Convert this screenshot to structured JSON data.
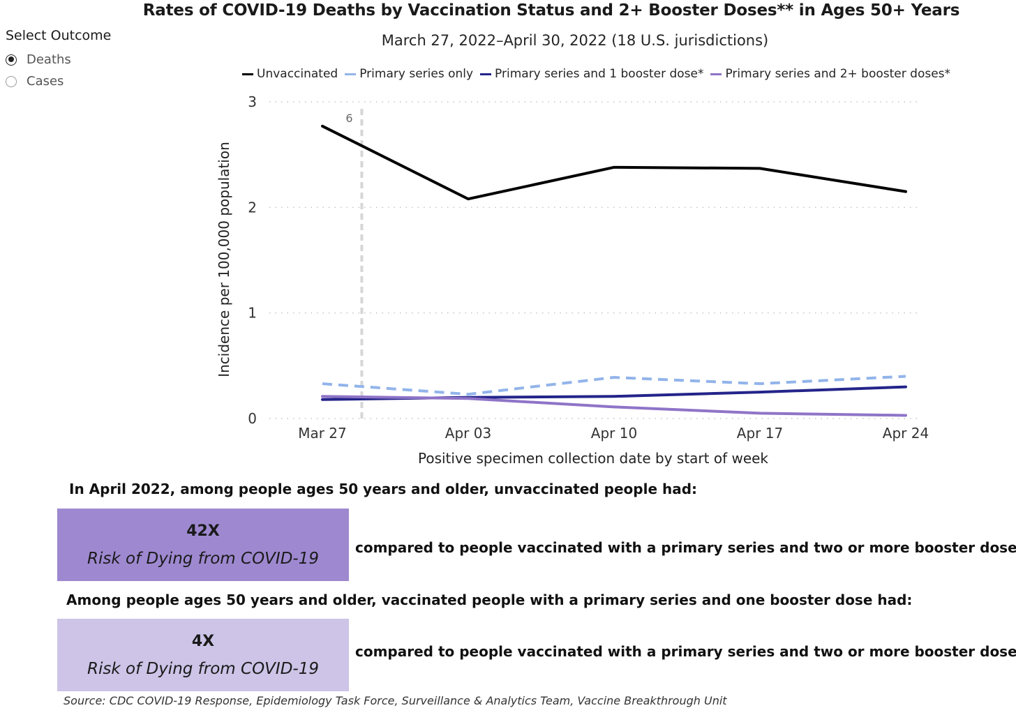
{
  "header": {
    "title": "Rates of COVID-19 Deaths by Vaccination Status and 2+ Booster Doses** in Ages 50+ Years",
    "subtitle": "March 27, 2022–April 30, 2022 (18 U.S. jurisdictions)"
  },
  "outcome_selector": {
    "label": "Select Outcome",
    "options": [
      {
        "label": "Deaths",
        "selected": true
      },
      {
        "label": "Cases",
        "selected": false
      }
    ]
  },
  "chart_data": {
    "type": "line",
    "xlabel": "Positive specimen collection date by start of week",
    "ylabel": "Incidence per 100,000 population",
    "categories": [
      "Mar 27",
      "Apr 03",
      "Apr 10",
      "Apr 17",
      "Apr 24"
    ],
    "yticks": [
      "0",
      "1",
      "2",
      "3"
    ],
    "ylim": [
      0,
      3
    ],
    "grid": "horizontal dotted",
    "legend_position": "top",
    "reference_line": {
      "label": "6",
      "x_week_fraction": 0.27
    },
    "series": [
      {
        "name": "Unvaccinated",
        "color": "#000000",
        "style": "solid",
        "values": [
          2.77,
          2.08,
          2.38,
          2.37,
          2.15
        ]
      },
      {
        "name": "Primary series only",
        "color": "#92b4ea",
        "style": "dashed",
        "values": [
          0.33,
          0.23,
          0.39,
          0.33,
          0.4
        ]
      },
      {
        "name": "Primary series and 1 booster dose*",
        "color": "#24248a",
        "style": "solid",
        "values": [
          0.18,
          0.2,
          0.21,
          0.25,
          0.3
        ]
      },
      {
        "name": "Primary series and 2+ booster doses*",
        "color": "#8f74c7",
        "style": "solid",
        "values": [
          0.21,
          0.19,
          0.11,
          0.05,
          0.03
        ]
      }
    ]
  },
  "summary": {
    "statement1": "In April 2022, among people ages 50 years and older, unvaccinated people had:",
    "box1": {
      "value": "42X",
      "label": "Risk of Dying from COVID-19",
      "color": "#9e89d0"
    },
    "compare1": "compared to people vaccinated with a primary series and two or more booster doses.**",
    "statement2": "Among people ages 50 years and older, vaccinated people with a primary series and one booster dose had:",
    "box2": {
      "value": "4X",
      "label": "Risk of Dying from COVID-19",
      "color": "#cdc4e7"
    },
    "compare2": "compared to people vaccinated with a primary series and two or more booster doses.**"
  },
  "source": "Source: CDC COVID-19 Response, Epidemiology Task Force, Surveillance & Analytics Team, Vaccine Breakthrough Unit"
}
